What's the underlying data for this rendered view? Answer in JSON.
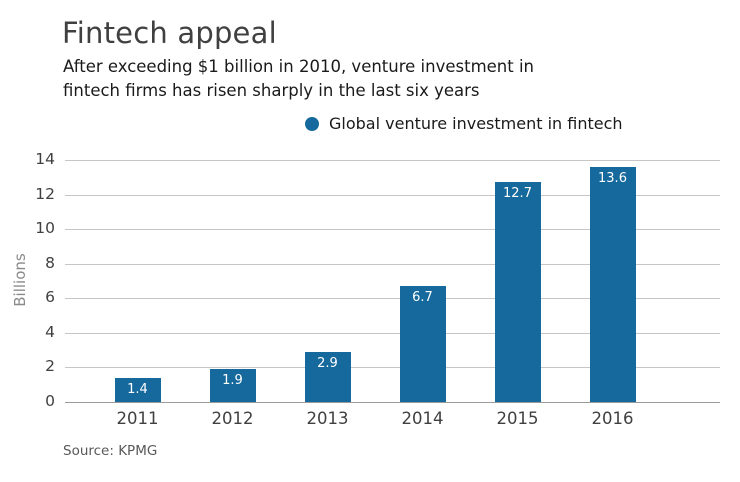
{
  "header": {
    "title": "Fintech appeal",
    "subtitle_line1": "After exceeding $1 billion in 2010, venture investment in",
    "subtitle_line2": "fintech firms has risen sharply in the last six years"
  },
  "legend": {
    "label": "Global venture investment in fintech",
    "marker": "legend-dot-icon"
  },
  "source": "Source: KPMG",
  "colors": {
    "accent": "#16699c",
    "grid": "#c6c6c6",
    "baseline": "#9a9a9a",
    "value_label": "#ffffff"
  },
  "chart_data": {
    "type": "bar",
    "title": "Fintech appeal",
    "categories": [
      "2011",
      "2012",
      "2013",
      "2014",
      "2015",
      "2016"
    ],
    "series": [
      {
        "name": "Global venture investment in fintech",
        "values": [
          1.4,
          1.9,
          2.9,
          6.7,
          12.7,
          13.6
        ]
      }
    ],
    "data_labels": [
      "1.4",
      "1.9",
      "2.9",
      "6.7",
      "12.7",
      "13.6"
    ],
    "xlabel": "",
    "ylabel": "Billions",
    "ylim": [
      0,
      14
    ],
    "ytick_step": 2,
    "grid": true,
    "legend_position": "top"
  }
}
